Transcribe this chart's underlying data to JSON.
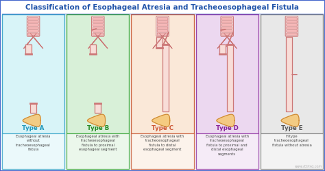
{
  "title": "Classification of Esophageal Atresia and Tracheoesophageal Fistula",
  "title_color": "#2255aa",
  "title_fontsize": 7.5,
  "background_color": "#ffffff",
  "border_color": "#4466cc",
  "types": [
    "Type A",
    "Type B",
    "Type C",
    "Type D",
    "Type E"
  ],
  "descriptions": [
    "Esophageal atresia\nwithout\ntracheoesophageal\nfistula",
    "Esophageal atresia with\ntracheoesophageal\nfistula to proximal\nesophageal segment",
    "Esophageal atresia with\ntracheoesophageal\nfistula to distal\nesophageal segment",
    "Esophageal atresia with\ntracheoesophageal\nfistula to proximal and\ndistal esophageal\nsegments",
    "H-type\ntracheoesophageal\nfistula without atresia"
  ],
  "box_colors": [
    "#d8f4f8",
    "#d8f0d8",
    "#fae8d8",
    "#ecd8f0",
    "#e8e8e8"
  ],
  "box_border_colors": [
    "#44aacc",
    "#44aa44",
    "#cc6644",
    "#9944aa",
    "#888888"
  ],
  "type_colors": [
    "#2299bb",
    "#228822",
    "#cc5533",
    "#882299",
    "#555555"
  ],
  "stripe_fill": "#f5b8b8",
  "stripe_edge": "#cc7777",
  "esoph_fill": "#f8ddd8",
  "esoph_edge": "#cc7777",
  "stomach_fill": "#f5c878",
  "stomach_edge": "#cc8833",
  "watermark": "www.iCliniq.com"
}
